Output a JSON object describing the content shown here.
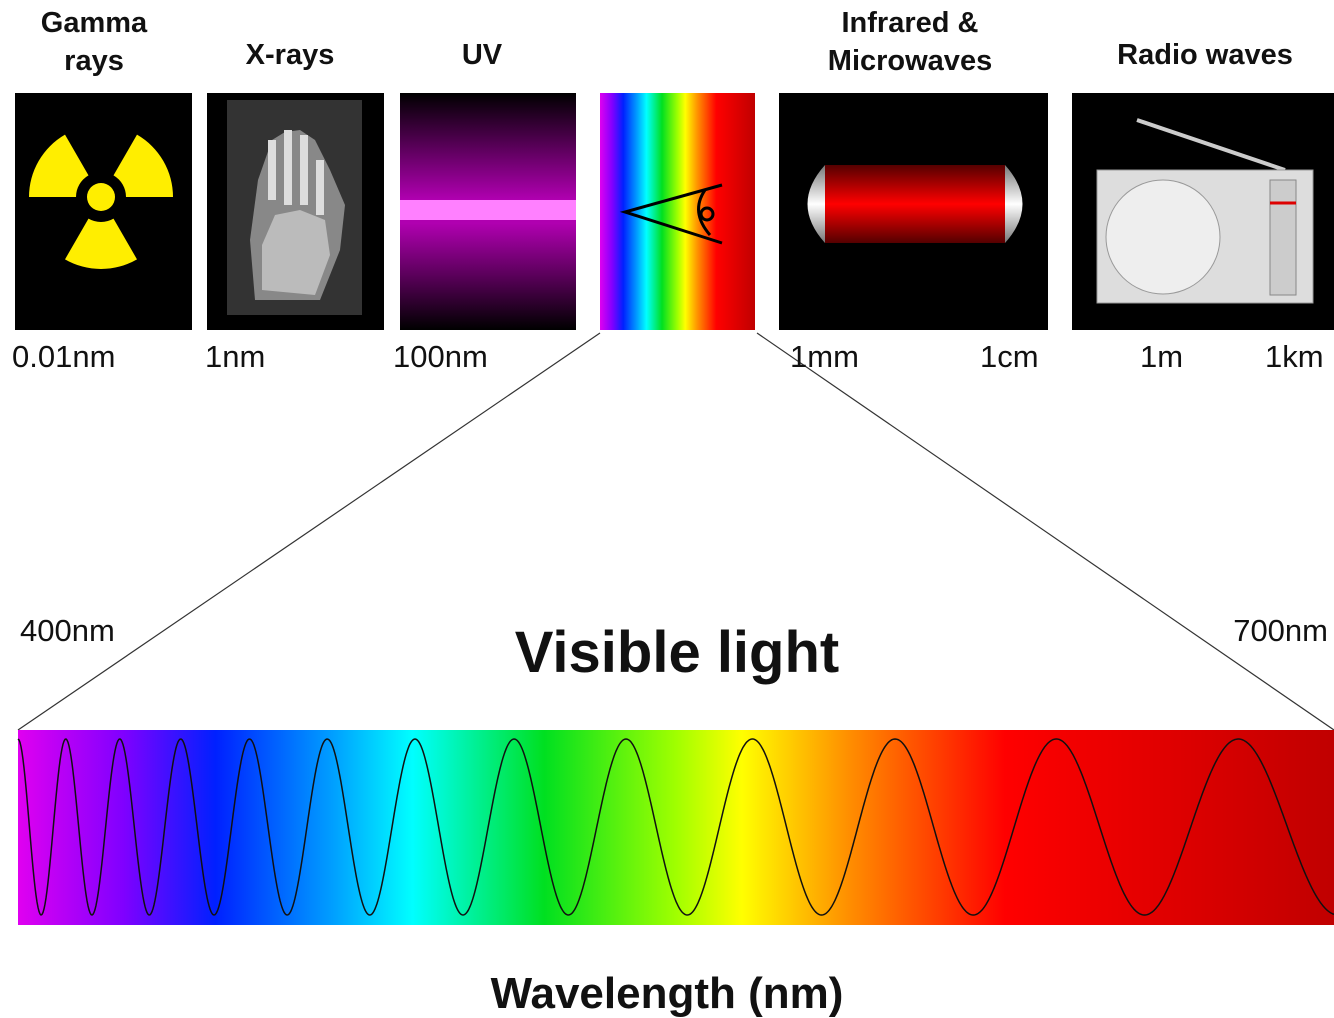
{
  "bands": [
    {
      "label_lines": [
        "Gamma",
        "rays"
      ]
    },
    {
      "label_lines": [
        "X-rays"
      ]
    },
    {
      "label_lines": [
        "UV"
      ]
    },
    {
      "label_lines": [
        "Infrared &",
        "Microwaves"
      ]
    },
    {
      "label_lines": [
        "Radio waves"
      ]
    }
  ],
  "scale_labels": [
    "0.01nm",
    "1nm",
    "100nm",
    "1mm",
    "1cm",
    "1m",
    "1km"
  ],
  "visible": {
    "start_label": "400nm",
    "end_label": "700nm",
    "title": "Visible light",
    "axis_label": "Wavelength (nm)"
  }
}
